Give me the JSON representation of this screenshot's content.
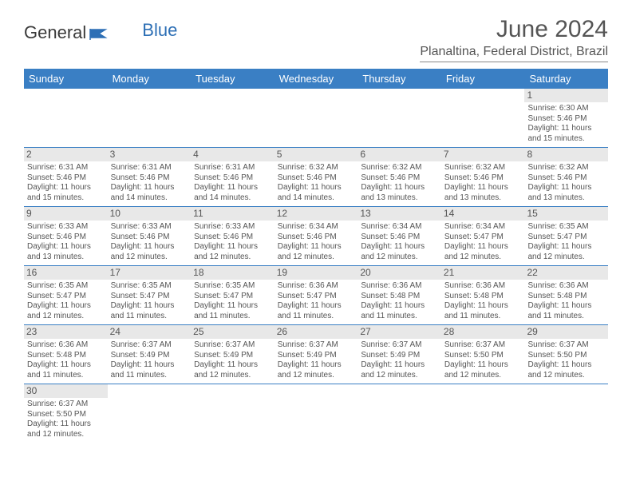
{
  "logo": {
    "text1": "General",
    "text2": "Blue"
  },
  "title": "June 2024",
  "location": "Planaltina, Federal District, Brazil",
  "daysOfWeek": [
    "Sunday",
    "Monday",
    "Tuesday",
    "Wednesday",
    "Thursday",
    "Friday",
    "Saturday"
  ],
  "colors": {
    "header_bg": "#3a7fc4",
    "header_text": "#ffffff",
    "border": "#3a7fc4",
    "text": "#555555",
    "daynum_bg": "#e8e8e8"
  },
  "fonts": {
    "title_size": 30,
    "location_size": 16,
    "header_size": 13,
    "daynum_size": 12,
    "cell_size": 10
  },
  "weeks": [
    [
      null,
      null,
      null,
      null,
      null,
      null,
      {
        "n": "1",
        "sr": "Sunrise: 6:30 AM",
        "ss": "Sunset: 5:46 PM",
        "dl1": "Daylight: 11 hours",
        "dl2": "and 15 minutes."
      }
    ],
    [
      {
        "n": "2",
        "sr": "Sunrise: 6:31 AM",
        "ss": "Sunset: 5:46 PM",
        "dl1": "Daylight: 11 hours",
        "dl2": "and 15 minutes."
      },
      {
        "n": "3",
        "sr": "Sunrise: 6:31 AM",
        "ss": "Sunset: 5:46 PM",
        "dl1": "Daylight: 11 hours",
        "dl2": "and 14 minutes."
      },
      {
        "n": "4",
        "sr": "Sunrise: 6:31 AM",
        "ss": "Sunset: 5:46 PM",
        "dl1": "Daylight: 11 hours",
        "dl2": "and 14 minutes."
      },
      {
        "n": "5",
        "sr": "Sunrise: 6:32 AM",
        "ss": "Sunset: 5:46 PM",
        "dl1": "Daylight: 11 hours",
        "dl2": "and 14 minutes."
      },
      {
        "n": "6",
        "sr": "Sunrise: 6:32 AM",
        "ss": "Sunset: 5:46 PM",
        "dl1": "Daylight: 11 hours",
        "dl2": "and 13 minutes."
      },
      {
        "n": "7",
        "sr": "Sunrise: 6:32 AM",
        "ss": "Sunset: 5:46 PM",
        "dl1": "Daylight: 11 hours",
        "dl2": "and 13 minutes."
      },
      {
        "n": "8",
        "sr": "Sunrise: 6:32 AM",
        "ss": "Sunset: 5:46 PM",
        "dl1": "Daylight: 11 hours",
        "dl2": "and 13 minutes."
      }
    ],
    [
      {
        "n": "9",
        "sr": "Sunrise: 6:33 AM",
        "ss": "Sunset: 5:46 PM",
        "dl1": "Daylight: 11 hours",
        "dl2": "and 13 minutes."
      },
      {
        "n": "10",
        "sr": "Sunrise: 6:33 AM",
        "ss": "Sunset: 5:46 PM",
        "dl1": "Daylight: 11 hours",
        "dl2": "and 12 minutes."
      },
      {
        "n": "11",
        "sr": "Sunrise: 6:33 AM",
        "ss": "Sunset: 5:46 PM",
        "dl1": "Daylight: 11 hours",
        "dl2": "and 12 minutes."
      },
      {
        "n": "12",
        "sr": "Sunrise: 6:34 AM",
        "ss": "Sunset: 5:46 PM",
        "dl1": "Daylight: 11 hours",
        "dl2": "and 12 minutes."
      },
      {
        "n": "13",
        "sr": "Sunrise: 6:34 AM",
        "ss": "Sunset: 5:46 PM",
        "dl1": "Daylight: 11 hours",
        "dl2": "and 12 minutes."
      },
      {
        "n": "14",
        "sr": "Sunrise: 6:34 AM",
        "ss": "Sunset: 5:47 PM",
        "dl1": "Daylight: 11 hours",
        "dl2": "and 12 minutes."
      },
      {
        "n": "15",
        "sr": "Sunrise: 6:35 AM",
        "ss": "Sunset: 5:47 PM",
        "dl1": "Daylight: 11 hours",
        "dl2": "and 12 minutes."
      }
    ],
    [
      {
        "n": "16",
        "sr": "Sunrise: 6:35 AM",
        "ss": "Sunset: 5:47 PM",
        "dl1": "Daylight: 11 hours",
        "dl2": "and 12 minutes."
      },
      {
        "n": "17",
        "sr": "Sunrise: 6:35 AM",
        "ss": "Sunset: 5:47 PM",
        "dl1": "Daylight: 11 hours",
        "dl2": "and 11 minutes."
      },
      {
        "n": "18",
        "sr": "Sunrise: 6:35 AM",
        "ss": "Sunset: 5:47 PM",
        "dl1": "Daylight: 11 hours",
        "dl2": "and 11 minutes."
      },
      {
        "n": "19",
        "sr": "Sunrise: 6:36 AM",
        "ss": "Sunset: 5:47 PM",
        "dl1": "Daylight: 11 hours",
        "dl2": "and 11 minutes."
      },
      {
        "n": "20",
        "sr": "Sunrise: 6:36 AM",
        "ss": "Sunset: 5:48 PM",
        "dl1": "Daylight: 11 hours",
        "dl2": "and 11 minutes."
      },
      {
        "n": "21",
        "sr": "Sunrise: 6:36 AM",
        "ss": "Sunset: 5:48 PM",
        "dl1": "Daylight: 11 hours",
        "dl2": "and 11 minutes."
      },
      {
        "n": "22",
        "sr": "Sunrise: 6:36 AM",
        "ss": "Sunset: 5:48 PM",
        "dl1": "Daylight: 11 hours",
        "dl2": "and 11 minutes."
      }
    ],
    [
      {
        "n": "23",
        "sr": "Sunrise: 6:36 AM",
        "ss": "Sunset: 5:48 PM",
        "dl1": "Daylight: 11 hours",
        "dl2": "and 11 minutes."
      },
      {
        "n": "24",
        "sr": "Sunrise: 6:37 AM",
        "ss": "Sunset: 5:49 PM",
        "dl1": "Daylight: 11 hours",
        "dl2": "and 11 minutes."
      },
      {
        "n": "25",
        "sr": "Sunrise: 6:37 AM",
        "ss": "Sunset: 5:49 PM",
        "dl1": "Daylight: 11 hours",
        "dl2": "and 12 minutes."
      },
      {
        "n": "26",
        "sr": "Sunrise: 6:37 AM",
        "ss": "Sunset: 5:49 PM",
        "dl1": "Daylight: 11 hours",
        "dl2": "and 12 minutes."
      },
      {
        "n": "27",
        "sr": "Sunrise: 6:37 AM",
        "ss": "Sunset: 5:49 PM",
        "dl1": "Daylight: 11 hours",
        "dl2": "and 12 minutes."
      },
      {
        "n": "28",
        "sr": "Sunrise: 6:37 AM",
        "ss": "Sunset: 5:50 PM",
        "dl1": "Daylight: 11 hours",
        "dl2": "and 12 minutes."
      },
      {
        "n": "29",
        "sr": "Sunrise: 6:37 AM",
        "ss": "Sunset: 5:50 PM",
        "dl1": "Daylight: 11 hours",
        "dl2": "and 12 minutes."
      }
    ],
    [
      {
        "n": "30",
        "sr": "Sunrise: 6:37 AM",
        "ss": "Sunset: 5:50 PM",
        "dl1": "Daylight: 11 hours",
        "dl2": "and 12 minutes."
      },
      null,
      null,
      null,
      null,
      null,
      null
    ]
  ]
}
